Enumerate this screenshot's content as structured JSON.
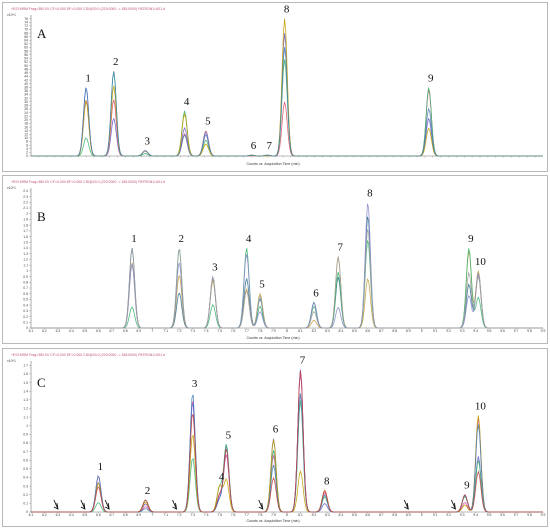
{
  "chart_data": [
    {
      "type": "line",
      "panel_label": "A",
      "header_text": "+ESI MRM Frag=380.0V CF=0.000 DF=0.000 CID@20.0 (229.0000 -> 185.0000) PATRON1=001.d",
      "y_multiplier": "x10^1",
      "yticks": [
        "0",
        "2",
        "4",
        "6",
        "8",
        "10",
        "12",
        "14",
        "16",
        "18",
        "20",
        "22",
        "24",
        "26",
        "28",
        "30",
        "32",
        "34",
        "36",
        "38",
        "40",
        "42",
        "44",
        "46",
        "48",
        "50",
        "52",
        "54",
        "56",
        "58",
        "60",
        "62",
        "64",
        "66",
        "68",
        "70",
        "72",
        "74",
        "76"
      ],
      "xlabel": "Counts vs. Acquisition Time (min)",
      "xlim": [
        0.5,
        7.0
      ],
      "ylim": [
        0,
        78
      ],
      "peaks": [
        {
          "label": "1",
          "rt": 1.2,
          "height": 38
        },
        {
          "label": "2",
          "rt": 1.55,
          "height": 47
        },
        {
          "label": "3",
          "rt": 1.95,
          "height": 3
        },
        {
          "label": "4",
          "rt": 2.45,
          "height": 25
        },
        {
          "label": "5",
          "rt": 2.72,
          "height": 14
        },
        {
          "label": "6",
          "rt": 3.3,
          "height": 0.5
        },
        {
          "label": "7",
          "rt": 3.5,
          "height": 0.5
        },
        {
          "label": "8",
          "rt": 3.72,
          "height": 76
        },
        {
          "label": "9",
          "rt": 5.55,
          "height": 38
        }
      ],
      "series_colors": [
        "#6a5acd",
        "#e0506a",
        "#3cb371",
        "#c0a000",
        "#4682b4"
      ]
    },
    {
      "type": "line",
      "panel_label": "B",
      "header_text": "+ESI MRM Frag=380.0V CF=0.000 DF=0.000 CID@20.0 (229.0000 -> 185.0000) PATRON1=001.d",
      "y_multiplier": "x10^1",
      "yticks": [
        "0",
        "0.1",
        "0.2",
        "0.3",
        "0.4",
        "0.5",
        "0.6",
        "0.7",
        "0.8",
        "0.9",
        "1",
        "1.1",
        "1.2",
        "1.3",
        "1.4",
        "1.5",
        "1.6",
        "1.7",
        "1.8",
        "1.9",
        "2",
        "2.1",
        "2.2",
        "2.3",
        "2.4"
      ],
      "xticks": [
        "6.1",
        "6.2",
        "6.3",
        "6.4",
        "6.5",
        "6.6",
        "6.7",
        "6.8",
        "6.9",
        "7",
        "7.1",
        "7.2",
        "7.3",
        "7.4",
        "7.5",
        "7.6",
        "7.7",
        "7.8",
        "7.9",
        "8",
        "8.1",
        "8.2",
        "8.3",
        "8.4",
        "8.5",
        "8.6",
        "8.7",
        "8.8",
        "8.9",
        "9",
        "9.1",
        "9.2",
        "9.3",
        "9.4",
        "9.5",
        "9.6",
        "9.7",
        "9.8",
        "9.9"
      ],
      "xlabel": "Counts vs. Acquisition Time (min)",
      "ylim": [
        0,
        2.45
      ],
      "peaks": [
        {
          "label": "1",
          "rt": 6.85,
          "height": 1.4
        },
        {
          "label": "2",
          "rt": 7.2,
          "height": 1.4
        },
        {
          "label": "3",
          "rt": 7.45,
          "height": 0.9
        },
        {
          "label": "4",
          "rt": 7.7,
          "height": 1.4
        },
        {
          "label": "5",
          "rt": 7.8,
          "height": 0.6
        },
        {
          "label": "6",
          "rt": 8.2,
          "height": 0.45
        },
        {
          "label": "7",
          "rt": 8.38,
          "height": 1.25
        },
        {
          "label": "8",
          "rt": 8.6,
          "height": 2.2
        },
        {
          "label": "9",
          "rt": 9.35,
          "height": 1.4
        },
        {
          "label": "10",
          "rt": 9.42,
          "height": 1.0
        }
      ],
      "series_colors": [
        "#2f6f8f",
        "#c8a040",
        "#3cb371",
        "#8888cc",
        "#a0a0a0"
      ]
    },
    {
      "type": "line",
      "panel_label": "C",
      "header_text": "+ESI MRM Frag=380.0V CF=0.000 DF=0.000 CID@20.0 (229.0000 -> 185.0000) PATRON1=001.d",
      "y_multiplier": "x10^1",
      "yticks": [
        "0",
        "0.1",
        "0.2",
        "0.3",
        "0.4",
        "0.5",
        "0.6",
        "0.7",
        "0.8",
        "0.9",
        "1",
        "1.1",
        "1.2",
        "1.3",
        "1.4",
        "1.5",
        "1.6",
        "1.7"
      ],
      "xticks": [
        "6.1",
        "6.2",
        "6.3",
        "6.4",
        "6.5",
        "6.6",
        "6.7",
        "6.8",
        "6.9",
        "7",
        "7.1",
        "7.2",
        "7.3",
        "7.4",
        "7.5",
        "7.6",
        "7.7",
        "7.8",
        "7.9",
        "8",
        "8.1",
        "8.2",
        "8.3",
        "8.4",
        "8.5",
        "8.6",
        "8.7",
        "8.8",
        "8.9",
        "9",
        "9.1",
        "9.2",
        "9.3",
        "9.4",
        "9.5",
        "9.6",
        "9.7",
        "9.8",
        "9.9"
      ],
      "xlabel": "Counts vs. Acquisition Time (min)",
      "ylim": [
        0,
        1.75
      ],
      "peaks": [
        {
          "label": "1",
          "rt": 6.6,
          "height": 0.42
        },
        {
          "label": "2",
          "rt": 6.95,
          "height": 0.14
        },
        {
          "label": "3",
          "rt": 7.3,
          "height": 1.38
        },
        {
          "label": "4",
          "rt": 7.5,
          "height": 0.3
        },
        {
          "label": "5",
          "rt": 7.55,
          "height": 0.78
        },
        {
          "label": "6",
          "rt": 7.9,
          "height": 0.85
        },
        {
          "label": "7",
          "rt": 8.1,
          "height": 1.65
        },
        {
          "label": "8",
          "rt": 8.28,
          "height": 0.25
        },
        {
          "label": "9",
          "rt": 9.32,
          "height": 0.2
        },
        {
          "label": "10",
          "rt": 9.42,
          "height": 1.12
        }
      ],
      "arrows_at_rt": [
        6.3,
        6.5,
        6.68,
        7.18,
        7.82,
        8.9,
        9.25
      ],
      "series_colors": [
        "#e040a0",
        "#6a5acd",
        "#3cb371",
        "#c0a000",
        "#4682b4",
        "#c04040"
      ]
    }
  ]
}
